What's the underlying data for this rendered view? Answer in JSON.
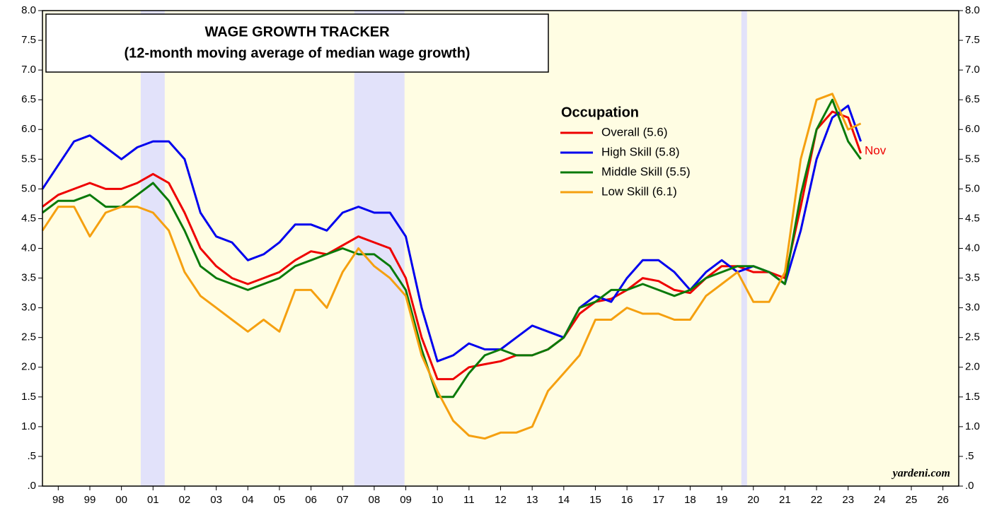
{
  "chart_data": {
    "type": "line",
    "title": "WAGE GROWTH TRACKER",
    "subtitle": "(12-month moving average of median wage growth)",
    "legend_title": "Occupation",
    "annotation": "Nov",
    "source": "yardeni.com",
    "xlim": [
      1998,
      2027
    ],
    "ylim": [
      0,
      8
    ],
    "yticks": [
      {
        "value": 0,
        "label": ".0"
      },
      {
        "value": 0.5,
        "label": ".5"
      },
      {
        "value": 1,
        "label": "1.0"
      },
      {
        "value": 1.5,
        "label": "1.5"
      },
      {
        "value": 2,
        "label": "2.0"
      },
      {
        "value": 2.5,
        "label": "2.5"
      },
      {
        "value": 3,
        "label": "3.0"
      },
      {
        "value": 3.5,
        "label": "3.5"
      },
      {
        "value": 4,
        "label": "4.0"
      },
      {
        "value": 4.5,
        "label": "4.5"
      },
      {
        "value": 5,
        "label": "5.0"
      },
      {
        "value": 5.5,
        "label": "5.5"
      },
      {
        "value": 6,
        "label": "6.0"
      },
      {
        "value": 6.5,
        "label": "6.5"
      },
      {
        "value": 7,
        "label": "7.0"
      },
      {
        "value": 7.5,
        "label": "7.5"
      },
      {
        "value": 8,
        "label": "8.0"
      }
    ],
    "xticks": [
      {
        "value": 1998.5,
        "label": "98"
      },
      {
        "value": 1999.5,
        "label": "99"
      },
      {
        "value": 2000.5,
        "label": "00"
      },
      {
        "value": 2001.5,
        "label": "01"
      },
      {
        "value": 2002.5,
        "label": "02"
      },
      {
        "value": 2003.5,
        "label": "03"
      },
      {
        "value": 2004.5,
        "label": "04"
      },
      {
        "value": 2005.5,
        "label": "05"
      },
      {
        "value": 2006.5,
        "label": "06"
      },
      {
        "value": 2007.5,
        "label": "07"
      },
      {
        "value": 2008.5,
        "label": "08"
      },
      {
        "value": 2009.5,
        "label": "09"
      },
      {
        "value": 2010.5,
        "label": "10"
      },
      {
        "value": 2011.5,
        "label": "11"
      },
      {
        "value": 2012.5,
        "label": "12"
      },
      {
        "value": 2013.5,
        "label": "13"
      },
      {
        "value": 2014.5,
        "label": "14"
      },
      {
        "value": 2015.5,
        "label": "15"
      },
      {
        "value": 2016.5,
        "label": "16"
      },
      {
        "value": 2017.5,
        "label": "17"
      },
      {
        "value": 2018.5,
        "label": "18"
      },
      {
        "value": 2019.5,
        "label": "19"
      },
      {
        "value": 2020.5,
        "label": "20"
      },
      {
        "value": 2021.5,
        "label": "21"
      },
      {
        "value": 2022.5,
        "label": "22"
      },
      {
        "value": 2023.5,
        "label": "23"
      },
      {
        "value": 2024.5,
        "label": "24"
      },
      {
        "value": 2025.5,
        "label": "25"
      },
      {
        "value": 2026.5,
        "label": "26"
      }
    ],
    "background_color": "#fffde3",
    "shade_color": "#e2e2fa",
    "shaded_ranges": [
      [
        2001.11,
        2001.87
      ],
      [
        2007.87,
        2009.46
      ],
      [
        2020.12,
        2020.3
      ]
    ],
    "x": [
      1998.0,
      1998.5,
      1999.0,
      1999.5,
      2000.0,
      2000.5,
      2001.0,
      2001.5,
      2002.0,
      2002.5,
      2003.0,
      2003.5,
      2004.0,
      2004.5,
      2005.0,
      2005.5,
      2006.0,
      2006.5,
      2007.0,
      2007.5,
      2008.0,
      2008.5,
      2009.0,
      2009.5,
      2010.0,
      2010.5,
      2011.0,
      2011.5,
      2012.0,
      2012.5,
      2013.0,
      2013.5,
      2014.0,
      2014.5,
      2015.0,
      2015.5,
      2016.0,
      2016.5,
      2017.0,
      2017.5,
      2018.0,
      2018.5,
      2019.0,
      2019.5,
      2020.0,
      2020.5,
      2021.0,
      2021.5,
      2022.0,
      2022.5,
      2023.0,
      2023.5,
      2023.9
    ],
    "series": [
      {
        "name": "Overall (5.6)",
        "color": "#ee0000",
        "values": [
          4.7,
          4.9,
          5.0,
          5.1,
          5.0,
          5.0,
          5.1,
          5.25,
          5.1,
          4.6,
          4.0,
          3.7,
          3.5,
          3.4,
          3.5,
          3.6,
          3.8,
          3.95,
          3.9,
          4.05,
          4.2,
          4.1,
          4.0,
          3.5,
          2.5,
          1.8,
          1.8,
          2.0,
          2.05,
          2.1,
          2.2,
          2.2,
          2.3,
          2.5,
          2.9,
          3.1,
          3.15,
          3.3,
          3.5,
          3.45,
          3.3,
          3.25,
          3.5,
          3.7,
          3.7,
          3.6,
          3.6,
          3.5,
          4.7,
          6.0,
          6.3,
          6.2,
          5.6
        ]
      },
      {
        "name": "High Skill (5.8)",
        "color": "#0000ee",
        "values": [
          5.0,
          5.4,
          5.8,
          5.9,
          5.7,
          5.5,
          5.7,
          5.8,
          5.8,
          5.5,
          4.6,
          4.2,
          4.1,
          3.8,
          3.9,
          4.1,
          4.4,
          4.4,
          4.3,
          4.6,
          4.7,
          4.6,
          4.6,
          4.2,
          3.0,
          2.1,
          2.2,
          2.4,
          2.3,
          2.3,
          2.5,
          2.7,
          2.6,
          2.5,
          3.0,
          3.2,
          3.1,
          3.5,
          3.8,
          3.8,
          3.6,
          3.3,
          3.6,
          3.8,
          3.6,
          3.7,
          3.6,
          3.4,
          4.3,
          5.5,
          6.2,
          6.4,
          5.8
        ]
      },
      {
        "name": "Middle Skill (5.5)",
        "color": "#0a7a0a",
        "values": [
          4.6,
          4.8,
          4.8,
          4.9,
          4.7,
          4.7,
          4.9,
          5.1,
          4.8,
          4.3,
          3.7,
          3.5,
          3.4,
          3.3,
          3.4,
          3.5,
          3.7,
          3.8,
          3.9,
          4.0,
          3.9,
          3.9,
          3.7,
          3.3,
          2.3,
          1.5,
          1.5,
          1.9,
          2.2,
          2.3,
          2.2,
          2.2,
          2.3,
          2.5,
          3.0,
          3.1,
          3.3,
          3.3,
          3.4,
          3.3,
          3.2,
          3.3,
          3.5,
          3.6,
          3.7,
          3.7,
          3.6,
          3.4,
          4.9,
          6.0,
          6.5,
          5.8,
          5.5
        ]
      },
      {
        "name": "Low Skill (6.1)",
        "color": "#f5a010",
        "values": [
          4.3,
          4.7,
          4.7,
          4.2,
          4.6,
          4.7,
          4.7,
          4.6,
          4.3,
          3.6,
          3.2,
          3.0,
          2.8,
          2.6,
          2.8,
          2.6,
          3.3,
          3.3,
          3.0,
          3.6,
          4.0,
          3.7,
          3.5,
          3.2,
          2.2,
          1.6,
          1.1,
          0.85,
          0.8,
          0.9,
          0.9,
          1.0,
          1.6,
          1.9,
          2.2,
          2.8,
          2.8,
          3.0,
          2.9,
          2.9,
          2.8,
          2.8,
          3.2,
          3.4,
          3.6,
          3.1,
          3.1,
          3.6,
          5.5,
          6.5,
          6.6,
          6.0,
          6.1
        ]
      }
    ]
  }
}
